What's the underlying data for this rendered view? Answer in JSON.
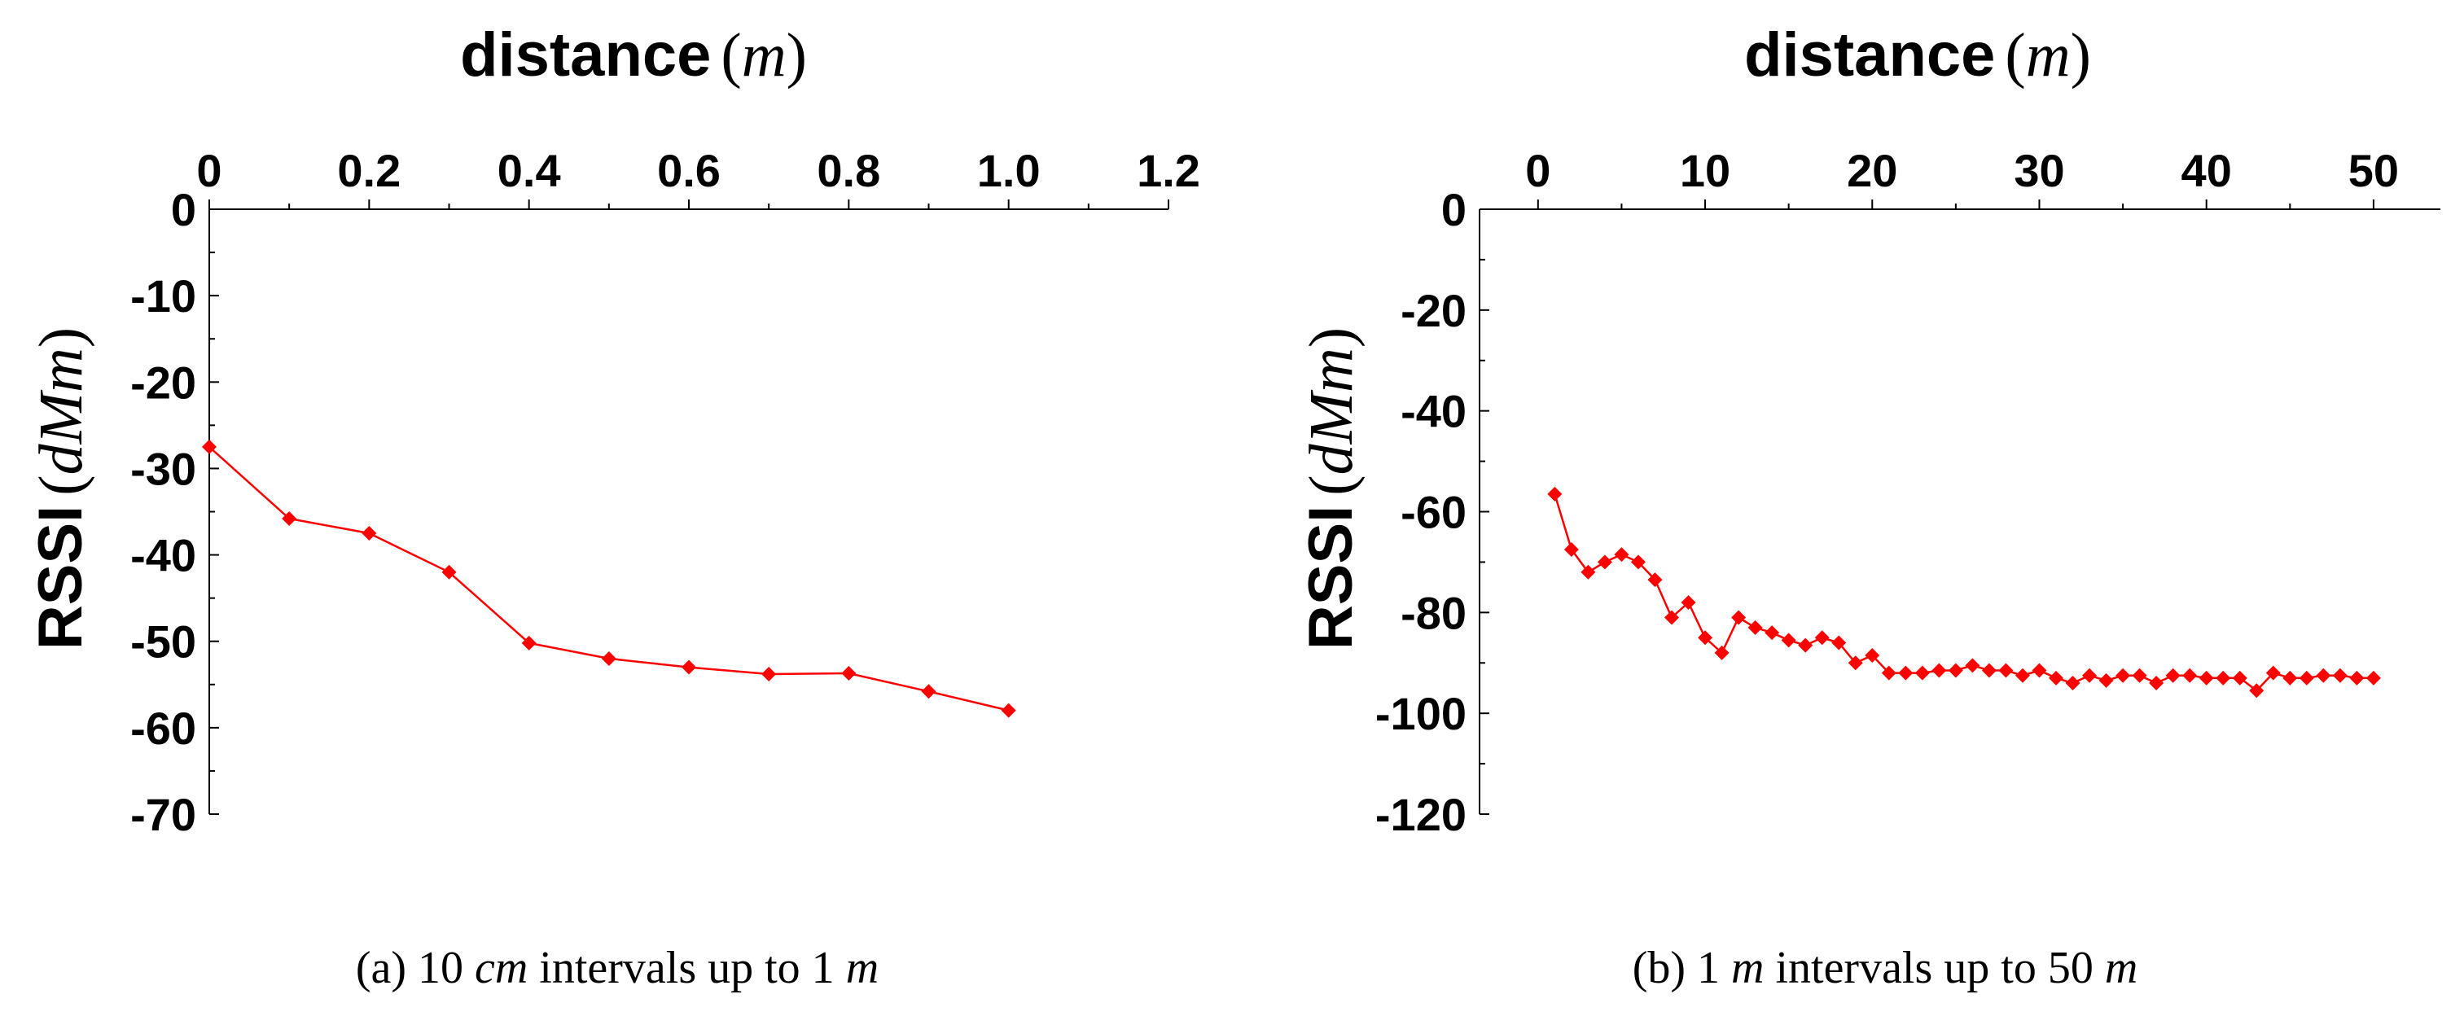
{
  "colors": {
    "series": "#ff0000",
    "axis": "#000000"
  },
  "chart_data": [
    {
      "type": "line",
      "xlabel": "distance",
      "xlabel_unit": "m",
      "ylabel": "RSSI",
      "ylabel_unit": "dMm",
      "x_axis_position": "top",
      "xlim": [
        0,
        1.2
      ],
      "ylim": [
        -70,
        0
      ],
      "x_ticks": [
        0,
        0.2,
        0.4,
        0.6,
        0.8,
        1.0,
        1.2
      ],
      "x_tick_labels": [
        "0",
        "0.2",
        "0.4",
        "0.6",
        "0.8",
        "1.0",
        "1.2"
      ],
      "y_ticks": [
        0,
        -10,
        -20,
        -30,
        -40,
        -50,
        -60,
        -70
      ],
      "y_tick_labels": [
        "0",
        "-10",
        "-20",
        "-30",
        "-40",
        "-50",
        "-60",
        "-70"
      ],
      "grid": false,
      "legend": "none",
      "caption_prefix": "(a) 10 ",
      "caption_unit1": "cm",
      "caption_middle": " intervals up to 1 ",
      "caption_unit2": "m",
      "series": [
        {
          "x": [
            0,
            0.1,
            0.2,
            0.3,
            0.4,
            0.5,
            0.6,
            0.7,
            0.8,
            0.9,
            1.0
          ],
          "values": [
            -27.5,
            -35.8,
            -37.5,
            -42,
            -50.2,
            -52,
            -53,
            -53.8,
            -53.7,
            -55.8,
            -58
          ]
        }
      ]
    },
    {
      "type": "line",
      "xlabel": "distance",
      "xlabel_unit": "m",
      "ylabel": "RSSI",
      "ylabel_unit": "dMm",
      "x_axis_position": "top",
      "xlim": [
        -3.5,
        54
      ],
      "ylim": [
        -120,
        0
      ],
      "x_ticks": [
        0,
        10,
        20,
        30,
        40,
        50
      ],
      "x_tick_labels": [
        "0",
        "10",
        "20",
        "30",
        "40",
        "50"
      ],
      "y_ticks": [
        0,
        -20,
        -40,
        -60,
        -80,
        -100,
        -120
      ],
      "y_tick_labels": [
        "0",
        "-20",
        "-40",
        "-60",
        "-80",
        "-100",
        "-120"
      ],
      "grid": false,
      "legend": "none",
      "caption_prefix": "(b) 1 ",
      "caption_unit1": "m",
      "caption_middle": " intervals up to 50 ",
      "caption_unit2": "m",
      "series": [
        {
          "x": [
            1,
            2,
            3,
            4,
            5,
            6,
            7,
            8,
            9,
            10,
            11,
            12,
            13,
            14,
            15,
            16,
            17,
            18,
            19,
            20,
            21,
            22,
            23,
            24,
            25,
            26,
            27,
            28,
            29,
            30,
            31,
            32,
            33,
            34,
            35,
            36,
            37,
            38,
            39,
            40,
            41,
            42,
            43,
            44,
            45,
            46,
            47,
            48,
            49,
            50
          ],
          "values": [
            -56.5,
            -67.5,
            -72,
            -70,
            -68.5,
            -70,
            -73.5,
            -81,
            -78,
            -85,
            -88,
            -81,
            -83,
            -84,
            -85.5,
            -86.5,
            -85,
            -86,
            -90,
            -88.5,
            -92,
            -92,
            -92,
            -91.5,
            -91.5,
            -90.5,
            -91.5,
            -91.5,
            -92.5,
            -91.5,
            -93,
            -94,
            -92.5,
            -93.5,
            -92.5,
            -92.5,
            -94,
            -92.5,
            -92.5,
            -93,
            -93,
            -93,
            -95.5,
            -92,
            -93,
            -93,
            -92.5,
            -92.5,
            -93,
            -93
          ]
        }
      ]
    }
  ]
}
